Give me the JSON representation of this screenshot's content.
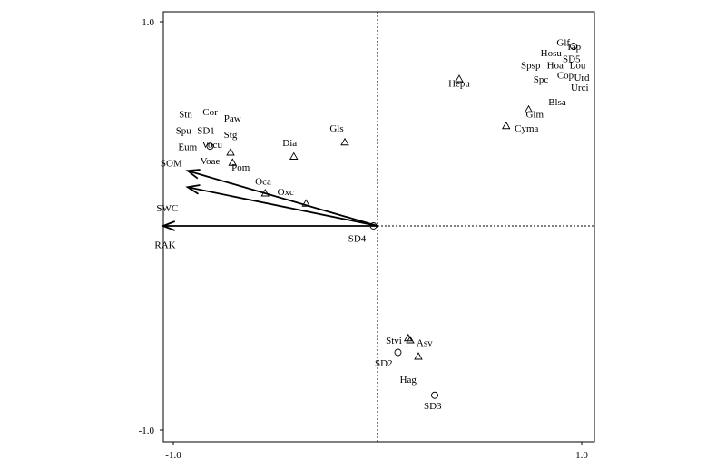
{
  "chart_data": {
    "type": "scatter",
    "title": "",
    "xlabel": "",
    "ylabel": "",
    "xlim": [
      -1.05,
      1.05
    ],
    "ylim": [
      -1.05,
      1.05
    ],
    "xticks": [
      {
        "value": -1.0,
        "label": "-1.0"
      },
      {
        "value": 1.0,
        "label": "1.0"
      }
    ],
    "yticks": [
      {
        "value": 1.0,
        "label": "1.0"
      },
      {
        "value": -1.0,
        "label": "-1.0"
      }
    ],
    "origin_lines": "dotted",
    "arrows": [
      {
        "name": "SOM",
        "x": -0.93,
        "y": 0.27
      },
      {
        "name": "SWC",
        "x": -0.93,
        "y": 0.19
      },
      {
        "name": "RAK",
        "x": -1.05,
        "y": 0.0
      }
    ],
    "species": [
      {
        "name": "Glf",
        "x": 0.91,
        "y": 0.9
      },
      {
        "name": "Tap",
        "x": 0.96,
        "y": 0.88
      },
      {
        "name": "Hosu",
        "x": 0.85,
        "y": 0.85
      },
      {
        "name": "SD5",
        "x": 0.95,
        "y": 0.82
      },
      {
        "name": "Spsp",
        "x": 0.75,
        "y": 0.79
      },
      {
        "name": "Hoa",
        "x": 0.87,
        "y": 0.79
      },
      {
        "name": "Lou",
        "x": 0.98,
        "y": 0.79
      },
      {
        "name": "Urd",
        "x": 1.0,
        "y": 0.73
      },
      {
        "name": "Spc",
        "x": 0.8,
        "y": 0.72
      },
      {
        "name": "Cop",
        "x": 0.92,
        "y": 0.74
      },
      {
        "name": "Urci",
        "x": 0.99,
        "y": 0.68
      },
      {
        "name": "Hepu",
        "x": 0.4,
        "y": 0.7
      },
      {
        "name": "Blsa",
        "x": 0.88,
        "y": 0.61
      },
      {
        "name": "Glm",
        "x": 0.77,
        "y": 0.55
      },
      {
        "name": "Cyma",
        "x": 0.73,
        "y": 0.48
      },
      {
        "name": "Stn",
        "x": -0.94,
        "y": 0.55
      },
      {
        "name": "Cor",
        "x": -0.82,
        "y": 0.56
      },
      {
        "name": "Paw",
        "x": -0.71,
        "y": 0.53
      },
      {
        "name": "Gls",
        "x": -0.2,
        "y": 0.48
      },
      {
        "name": "Spu",
        "x": -0.95,
        "y": 0.47
      },
      {
        "name": "SD1",
        "x": -0.84,
        "y": 0.47
      },
      {
        "name": "Stg",
        "x": -0.72,
        "y": 0.45
      },
      {
        "name": "Eum",
        "x": -0.93,
        "y": 0.39
      },
      {
        "name": "Vocu",
        "x": -0.81,
        "y": 0.4
      },
      {
        "name": "Dia",
        "x": -0.43,
        "y": 0.41
      },
      {
        "name": "Voae",
        "x": -0.82,
        "y": 0.32
      },
      {
        "name": "SOM",
        "x": -1.01,
        "y": 0.31
      },
      {
        "name": "Pom",
        "x": -0.67,
        "y": 0.29
      },
      {
        "name": "Oca",
        "x": -0.56,
        "y": 0.22
      },
      {
        "name": "Oxc",
        "x": -0.45,
        "y": 0.17
      },
      {
        "name": "SWC",
        "x": -1.03,
        "y": 0.09
      },
      {
        "name": "RAK",
        "x": -1.04,
        "y": -0.09
      },
      {
        "name": "SD4",
        "x": -0.1,
        "y": -0.06
      },
      {
        "name": "Stvi",
        "x": 0.08,
        "y": -0.56
      },
      {
        "name": "Asv",
        "x": 0.23,
        "y": -0.57
      },
      {
        "name": "SD2",
        "x": 0.03,
        "y": -0.67
      },
      {
        "name": "Hag",
        "x": 0.15,
        "y": -0.75
      },
      {
        "name": "SD3",
        "x": 0.27,
        "y": -0.88
      }
    ],
    "markers": [
      {
        "kind": "circle",
        "x": 0.96,
        "y": 0.88
      },
      {
        "kind": "triangle",
        "x": 0.4,
        "y": 0.72
      },
      {
        "kind": "triangle",
        "x": 0.74,
        "y": 0.57
      },
      {
        "kind": "triangle",
        "x": 0.63,
        "y": 0.49
      },
      {
        "kind": "triangle",
        "x": -0.16,
        "y": 0.41
      },
      {
        "kind": "triangle",
        "x": -0.41,
        "y": 0.34
      },
      {
        "kind": "circle",
        "x": -0.82,
        "y": 0.39
      },
      {
        "kind": "triangle",
        "x": -0.72,
        "y": 0.36
      },
      {
        "kind": "triangle",
        "x": -0.71,
        "y": 0.31
      },
      {
        "kind": "triangle",
        "x": -0.55,
        "y": 0.16
      },
      {
        "kind": "triangle",
        "x": -0.35,
        "y": 0.11
      },
      {
        "kind": "circle",
        "x": -0.02,
        "y": 0.0
      },
      {
        "kind": "triangle",
        "x": 0.15,
        "y": -0.55
      },
      {
        "kind": "triangle",
        "x": 0.16,
        "y": -0.56
      },
      {
        "kind": "triangle",
        "x": 0.2,
        "y": -0.64
      },
      {
        "kind": "circle",
        "x": 0.1,
        "y": -0.62
      },
      {
        "kind": "circle",
        "x": 0.28,
        "y": -0.83
      }
    ]
  }
}
